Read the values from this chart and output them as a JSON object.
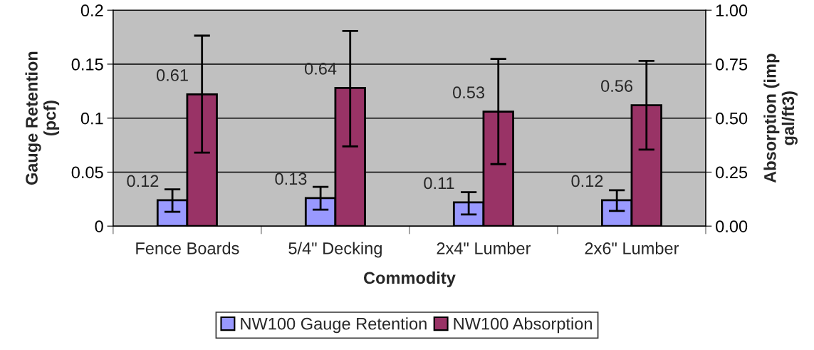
{
  "chart_data": {
    "type": "bar",
    "categories": [
      "Fence Boards",
      "5/4\" Decking",
      "2x4\" Lumber",
      "2x6\" Lumber"
    ],
    "xlabel": "Commodity",
    "ylabel": "Gauge Retention\n(pcf)",
    "y2label": "Absorption (imp\ngal/ft3)",
    "ylim": [
      0,
      0.2
    ],
    "yticks": [
      0,
      0.05,
      0.1,
      0.15,
      0.2
    ],
    "y2lim": [
      0,
      1
    ],
    "y2ticks": [
      {
        "value": 0,
        "label": "0.00"
      },
      {
        "value": 0.25,
        "label": "0.25"
      },
      {
        "value": 0.5,
        "label": "0.50"
      },
      {
        "value": 0.75,
        "label": "0.75"
      },
      {
        "value": 1,
        "label": "1.00"
      }
    ],
    "series": [
      {
        "name": "NW100 Gauge Retention",
        "color": "#9999ff",
        "axis": "y2",
        "values": [
          0.12,
          0.13,
          0.11,
          0.12
        ],
        "errors": [
          [
            0.066,
            0.17
          ],
          [
            0.076,
            0.182
          ],
          [
            0.054,
            0.157
          ],
          [
            0.07,
            0.166
          ]
        ]
      },
      {
        "name": "NW100 Absorption",
        "color": "#993366",
        "axis": "y2",
        "values": [
          0.61,
          0.64,
          0.53,
          0.56
        ],
        "errors": [
          [
            0.34,
            0.882
          ],
          [
            0.369,
            0.904
          ],
          [
            0.287,
            0.774
          ],
          [
            0.354,
            0.765
          ]
        ]
      }
    ],
    "data_labels": true,
    "grid": "y",
    "legend": "bottom"
  }
}
